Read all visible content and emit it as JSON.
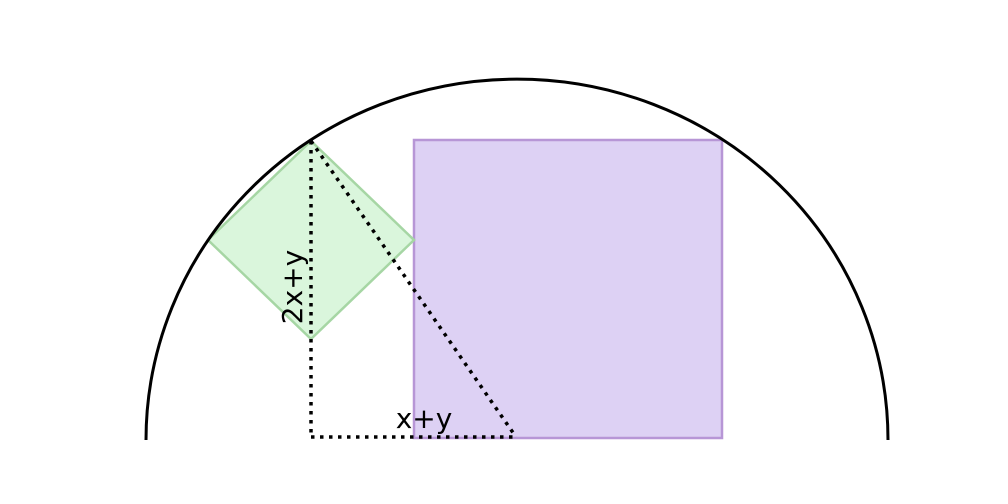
{
  "labels": {
    "vertical": "2x+y",
    "horizontal": "x+y"
  },
  "colors": {
    "arc": "#000000",
    "square_fill": "#ddd1f4",
    "square_stroke": "#b796d6",
    "diamond_fill": "#daf6dc",
    "diamond_stroke": "#a6d6a4",
    "dotted": "#000000"
  },
  "shapes": [
    "semicircle",
    "large-square",
    "rotated-square",
    "right-triangle-dotted"
  ]
}
